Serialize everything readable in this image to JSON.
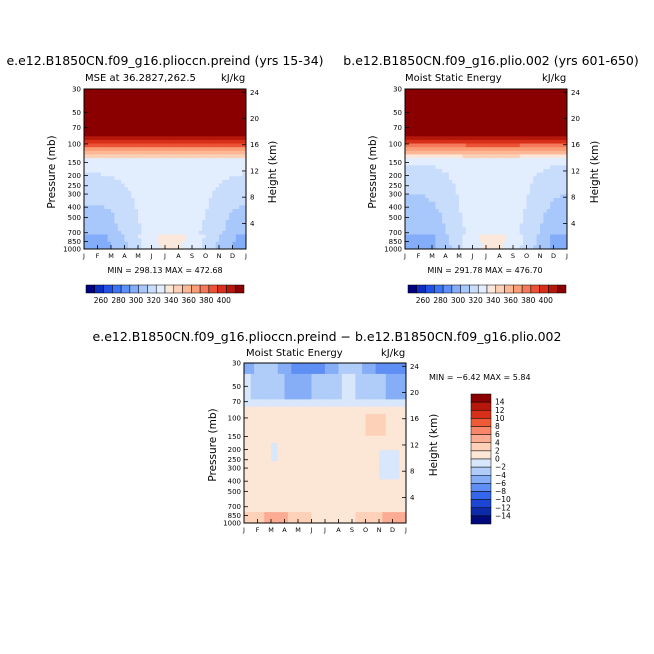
{
  "chart_data": [
    {
      "type": "heatmap",
      "title": "e.e12.B1850CN.f09_g16.plioccn.preind (yrs 15-34)",
      "subtitle_left": "MSE at 36.2827,262.5",
      "subtitle_right": "kJ/kg",
      "xlabel": "",
      "ylabel": "Pressure (mb)",
      "ylabel_right": "Height (km)",
      "months": [
        "J",
        "F",
        "M",
        "A",
        "M",
        "J",
        "J",
        "A",
        "S",
        "O",
        "N",
        "D",
        "J"
      ],
      "pressure_ticks": [
        "30",
        "50",
        "70",
        "100",
        "150",
        "200",
        "250",
        "300",
        "400",
        "500",
        "700",
        "850",
        "1000"
      ],
      "height_ticks": [
        "24",
        "20",
        "16",
        "12",
        "8",
        "4"
      ],
      "min_max": "MIN = 298.13  MAX = 472.68",
      "min": 298.13,
      "max": 472.68,
      "colorbar_labels": [
        "260",
        "280",
        "300",
        "320",
        "340",
        "360",
        "380",
        "400"
      ]
    },
    {
      "type": "heatmap",
      "title": "b.e12.B1850CN.f09_g16.plio.002 (yrs 601-650)",
      "subtitle_left": "Moist Static Energy",
      "subtitle_right": "kJ/kg",
      "xlabel": "",
      "ylabel": "Pressure (mb)",
      "ylabel_right": "Height (km)",
      "months": [
        "J",
        "F",
        "M",
        "A",
        "M",
        "J",
        "J",
        "A",
        "S",
        "O",
        "N",
        "D",
        "J"
      ],
      "pressure_ticks": [
        "30",
        "50",
        "70",
        "100",
        "150",
        "200",
        "250",
        "300",
        "400",
        "500",
        "700",
        "850",
        "1000"
      ],
      "height_ticks": [
        "24",
        "20",
        "16",
        "12",
        "8",
        "4"
      ],
      "min_max": "MIN = 291.78  MAX = 476.70",
      "min": 291.78,
      "max": 476.7,
      "colorbar_labels": [
        "260",
        "280",
        "300",
        "320",
        "340",
        "360",
        "380",
        "400"
      ]
    },
    {
      "type": "heatmap",
      "title": "e.e12.B1850CN.f09_g16.plioccn.preind − b.e12.B1850CN.f09_g16.plio.002",
      "subtitle_left": "Moist Static Energy",
      "subtitle_right": "kJ/kg",
      "xlabel": "",
      "ylabel": "Pressure (mb)",
      "ylabel_right": "Height (km)",
      "months": [
        "J",
        "F",
        "M",
        "A",
        "M",
        "J",
        "J",
        "A",
        "S",
        "O",
        "N",
        "D",
        "J"
      ],
      "pressure_ticks": [
        "30",
        "50",
        "70",
        "100",
        "150",
        "200",
        "250",
        "300",
        "400",
        "500",
        "700",
        "850",
        "1000"
      ],
      "height_ticks": [
        "24",
        "20",
        "16",
        "12",
        "8",
        "4"
      ],
      "min_max": "MIN =   −6.42  MAX =    5.84",
      "min": -6.42,
      "max": 5.84,
      "colorbar_labels": [
        "14",
        "12",
        "10",
        "8",
        "6",
        "4",
        "2",
        "0",
        "−2",
        "−4",
        "−6",
        "−8",
        "−10",
        "−12",
        "−14"
      ]
    }
  ],
  "colors": {
    "mse_scale": [
      "#000080",
      "#0a2fbf",
      "#2251e6",
      "#3d73f5",
      "#5f90f7",
      "#84adf9",
      "#a8c7fb",
      "#c8dcfc",
      "#e2edfd",
      "#fbe8da",
      "#fdd1b7",
      "#fcb896",
      "#f99e76",
      "#f4795a",
      "#ec5236",
      "#d83018",
      "#b5170a",
      "#8a0000"
    ],
    "diff_scale": [
      "#8a0000",
      "#b5170a",
      "#d83018",
      "#ef5a36",
      "#f8876a",
      "#fbac92",
      "#fcd1b8",
      "#fce6d6",
      "#d8e7fb",
      "#b0cdfa",
      "#85aef7",
      "#5f8ff5",
      "#3567ec",
      "#1b45d2",
      "#0d2aa8",
      "#000a7a"
    ]
  }
}
